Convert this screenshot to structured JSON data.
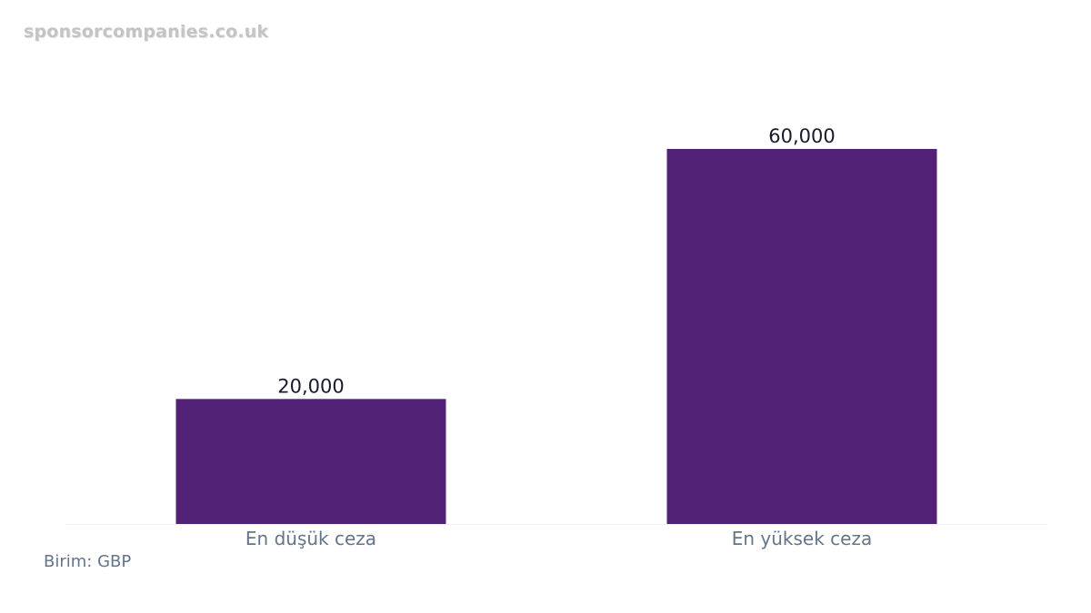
{
  "watermark": "sponsorcompanies.co.uk",
  "unit_note": "Birim: GBP",
  "colors": {
    "bar": "#522276",
    "value_label": "#1a1a2e",
    "category_label": "#64748b",
    "baseline": "#f1f1f4",
    "watermark": "#c4c4c4"
  },
  "chart_data": {
    "type": "bar",
    "title": "",
    "xlabel": "",
    "ylabel": "",
    "categories": [
      "En düşük ceza",
      "En yüksek ceza"
    ],
    "values": [
      20000,
      60000
    ],
    "value_labels": [
      "20,000",
      "60,000"
    ],
    "ylim": [
      0,
      60000
    ],
    "grid": false,
    "legend": "none"
  }
}
